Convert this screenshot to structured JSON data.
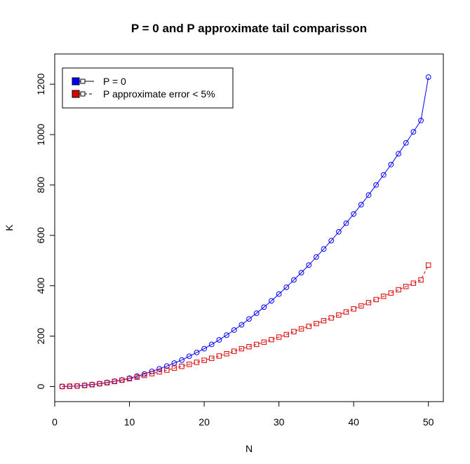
{
  "chart_data": {
    "type": "line",
    "title": "P = 0 and P approximate tail comparisson",
    "xlabel": "N",
    "ylabel": "K",
    "xlim": [
      0,
      52
    ],
    "ylim": [
      -60,
      1320
    ],
    "xticks": [
      0,
      10,
      20,
      30,
      40,
      50
    ],
    "yticks": [
      0,
      200,
      400,
      600,
      800,
      1000,
      1200
    ],
    "grid": false,
    "legend_position": "top-left",
    "x": [
      1,
      2,
      3,
      4,
      5,
      6,
      7,
      8,
      9,
      10,
      11,
      12,
      13,
      14,
      15,
      16,
      17,
      18,
      19,
      20,
      21,
      22,
      23,
      24,
      25,
      26,
      27,
      28,
      29,
      30,
      31,
      32,
      33,
      34,
      35,
      36,
      37,
      38,
      39,
      40,
      41,
      42,
      43,
      44,
      45,
      46,
      47,
      48,
      49,
      50
    ],
    "series": [
      {
        "name": "P = 0",
        "color": "#0000ff",
        "marker": "circle",
        "line": "solid",
        "values": [
          0,
          1,
          2,
          5,
          8,
          11,
          16,
          21,
          26,
          33,
          41,
          50,
          60,
          70,
          81,
          93,
          105,
          120,
          135,
          150,
          167,
          185,
          204,
          224,
          245,
          268,
          291,
          315,
          340,
          367,
          394,
          423,
          452,
          482,
          514,
          546,
          579,
          614,
          648,
          685,
          722,
          760,
          800,
          840,
          881,
          924,
          967,
          1011,
          1056,
          1228
        ]
      },
      {
        "name": "P approximate error < 5%",
        "color": "#dd0000",
        "marker": "square",
        "line": "dashed",
        "values": [
          0,
          1,
          2,
          4,
          7,
          11,
          15,
          20,
          25,
          31,
          37,
          44,
          51,
          58,
          65,
          73,
          80,
          88,
          96,
          104,
          112,
          121,
          130,
          140,
          150,
          158,
          167,
          176,
          186,
          196,
          206,
          218,
          229,
          239,
          250,
          261,
          272,
          284,
          296,
          308,
          320,
          333,
          345,
          358,
          371,
          384,
          397,
          410,
          423,
          482
        ]
      }
    ]
  }
}
